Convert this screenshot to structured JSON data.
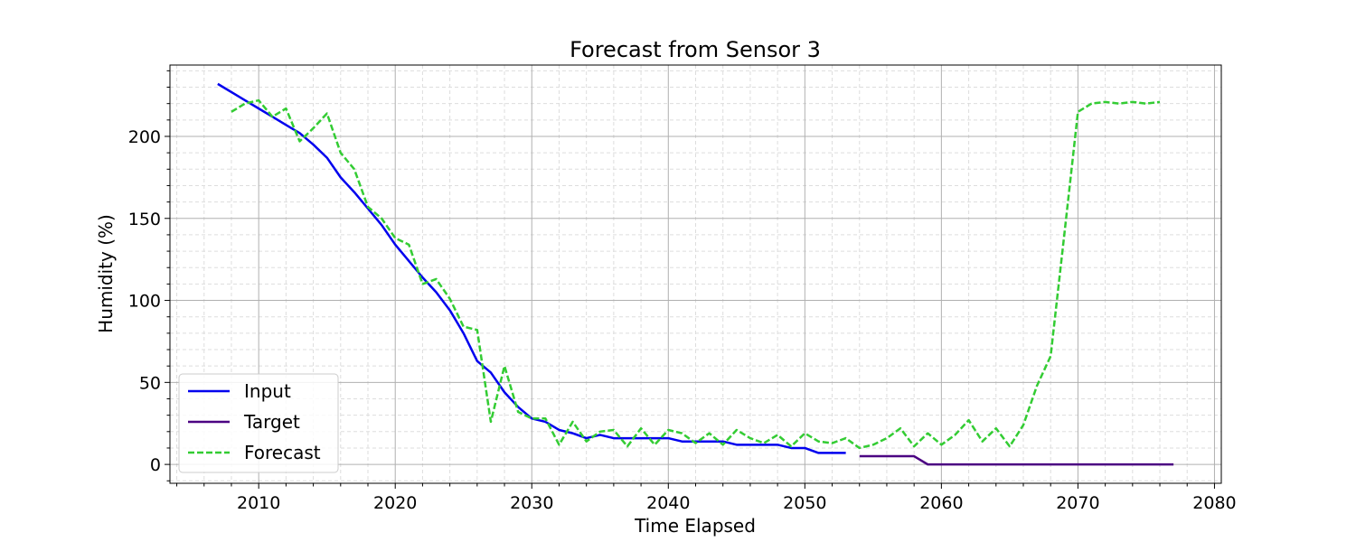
{
  "chart_data": {
    "type": "line",
    "title": "Forecast from Sensor 3",
    "xlabel": "Time Elapsed",
    "ylabel": "Humidity (%)",
    "xlim": [
      2003.5,
      2080.5
    ],
    "ylim": [
      -11.5,
      243.5
    ],
    "xticks": [
      2010,
      2020,
      2030,
      2040,
      2050,
      2060,
      2070,
      2080
    ],
    "yticks": [
      0,
      50,
      100,
      150,
      200
    ],
    "grid": true,
    "legend_position": "lower-left",
    "series": [
      {
        "name": "Input",
        "color": "#0000ee",
        "style": "solid",
        "x": [
          2007,
          2008,
          2009,
          2010,
          2011,
          2012,
          2013,
          2014,
          2015,
          2016,
          2017,
          2018,
          2019,
          2020,
          2021,
          2022,
          2023,
          2024,
          2025,
          2026,
          2027,
          2028,
          2029,
          2030,
          2031,
          2032,
          2033,
          2034,
          2035,
          2036,
          2037,
          2038,
          2039,
          2040,
          2041,
          2042,
          2043,
          2044,
          2045,
          2046,
          2047,
          2048,
          2049,
          2050,
          2051,
          2052,
          2053
        ],
        "y": [
          232,
          227,
          222,
          217,
          212,
          207,
          202,
          195,
          187,
          175,
          166,
          156,
          146,
          134,
          124,
          114,
          105,
          94,
          80,
          63,
          56,
          44,
          35,
          28,
          26,
          21,
          19,
          16,
          18,
          16,
          16,
          16,
          16,
          16,
          14,
          14,
          14,
          14,
          12,
          12,
          12,
          12,
          10,
          10,
          7,
          7,
          7
        ]
      },
      {
        "name": "Target",
        "color": "#4b0082",
        "style": "solid",
        "x": [
          2054,
          2055,
          2056,
          2057,
          2058,
          2059,
          2060,
          2061,
          2062,
          2063,
          2064,
          2065,
          2066,
          2067,
          2068,
          2069,
          2070,
          2071,
          2072,
          2073,
          2074,
          2075,
          2076,
          2077
        ],
        "y": [
          5,
          5,
          5,
          5,
          5,
          0,
          0,
          0,
          0,
          0,
          0,
          0,
          0,
          0,
          0,
          0,
          0,
          0,
          0,
          0,
          0,
          0,
          0,
          0
        ]
      },
      {
        "name": "Forecast",
        "color": "#33cc33",
        "style": "dashed",
        "x": [
          2008,
          2009,
          2010,
          2011,
          2012,
          2013,
          2014,
          2015,
          2016,
          2017,
          2018,
          2019,
          2020,
          2021,
          2022,
          2023,
          2024,
          2025,
          2026,
          2027,
          2028,
          2029,
          2030,
          2031,
          2032,
          2033,
          2034,
          2035,
          2036,
          2037,
          2038,
          2039,
          2040,
          2041,
          2042,
          2043,
          2044,
          2045,
          2046,
          2047,
          2048,
          2049,
          2050,
          2051,
          2052,
          2053,
          2054,
          2055,
          2056,
          2057,
          2058,
          2059,
          2060,
          2061,
          2062,
          2063,
          2064,
          2065,
          2066,
          2067,
          2068,
          2069,
          2070,
          2071,
          2072,
          2073,
          2074,
          2075,
          2076
        ],
        "y": [
          215,
          220,
          222,
          212,
          217,
          197,
          205,
          214,
          190,
          180,
          157,
          150,
          138,
          134,
          110,
          113,
          101,
          84,
          82,
          26,
          60,
          32,
          28,
          28,
          12,
          26,
          14,
          20,
          21,
          11,
          22,
          12,
          21,
          19,
          13,
          19,
          12,
          21,
          16,
          13,
          18,
          11,
          19,
          14,
          13,
          16,
          10,
          12,
          16,
          22,
          11,
          19,
          12,
          18,
          27,
          14,
          22,
          11,
          24,
          48,
          66,
          140,
          215,
          220,
          221,
          220,
          221,
          220,
          221
        ]
      }
    ]
  }
}
